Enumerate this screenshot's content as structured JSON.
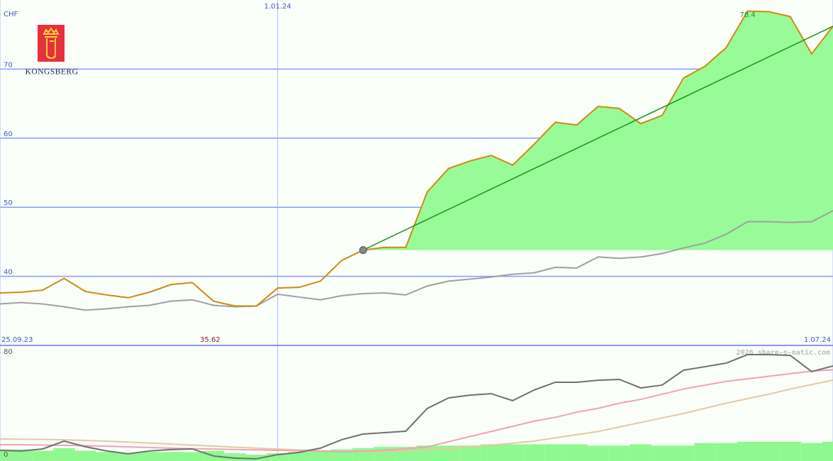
{
  "chart_data": [
    {
      "type": "line",
      "ylabel": "CHF",
      "x": [
        0,
        1,
        2,
        3,
        4,
        5,
        6,
        7,
        8,
        9,
        10,
        11,
        12,
        13,
        14,
        15,
        16,
        17,
        18,
        19,
        20,
        21,
        22,
        23,
        24,
        25,
        26,
        27,
        28,
        29,
        30,
        31,
        32,
        33,
        34,
        35,
        36,
        37,
        38,
        39
      ],
      "xlim": [
        0,
        39
      ],
      "ylim": [
        30,
        80
      ],
      "yticks": [
        40,
        50,
        60,
        70
      ],
      "grid": true,
      "xticks": [
        {
          "value": 0,
          "label": "25.09.23"
        },
        {
          "value": 13,
          "label": "1.01.24"
        },
        {
          "value": 39,
          "label": "1.07.24"
        }
      ],
      "annotations": {
        "high": "78.4",
        "low": "35.62"
      },
      "series": [
        {
          "color": "#a0a0a0",
          "values": [
            36.0,
            36.2,
            36.0,
            35.6,
            35.1,
            35.3,
            35.6,
            35.8,
            36.4,
            36.6,
            35.8,
            35.6,
            35.7,
            37.4,
            37.0,
            36.6,
            37.2,
            37.5,
            37.6,
            37.3,
            38.6,
            39.3,
            39.6,
            39.9,
            40.3,
            40.5,
            41.3,
            41.2,
            42.8,
            42.6,
            42.8,
            43.3,
            44.1,
            44.8,
            46.1,
            47.9,
            47.9,
            47.8,
            47.9,
            49.5
          ]
        },
        {
          "color": "#d08a10",
          "fill_color": "#98fb98",
          "values": [
            37.6,
            37.7,
            38.0,
            39.7,
            37.8,
            37.3,
            36.9,
            37.7,
            38.8,
            39.1,
            36.4,
            35.7,
            35.7,
            38.3,
            38.4,
            39.3,
            42.3,
            43.8,
            44.2,
            44.2,
            52.2,
            55.6,
            56.7,
            57.5,
            56.1,
            59.1,
            62.3,
            61.9,
            64.6,
            64.3,
            62.1,
            63.3,
            68.7,
            70.4,
            73.1,
            78.4,
            78.3,
            77.6,
            72.2,
            76.2
          ]
        },
        {
          "color": "#229922",
          "trend": true,
          "x": [
            17,
            39
          ],
          "values": [
            43.8,
            76.2
          ]
        }
      ]
    },
    {
      "type": "line",
      "xlim": [
        0,
        39
      ],
      "ylim": [
        -5,
        85
      ],
      "yticks": [
        0,
        80
      ],
      "bars": {
        "color": "#90f890",
        "values": [
          4,
          4,
          3,
          5,
          3,
          2,
          1,
          2,
          2,
          2,
          3,
          1,
          0,
          1,
          2,
          3,
          4,
          5,
          6,
          6,
          7,
          7,
          7,
          8,
          8,
          8,
          8,
          8,
          7,
          7,
          8,
          7,
          7,
          9,
          9,
          10,
          10,
          10,
          9,
          10
        ]
      },
      "series": [
        {
          "color": "#e8c8a0",
          "values": [
            12.1,
            12.0,
            11.8,
            11.5,
            11.0,
            10.4,
            9.8,
            9.0,
            8.2,
            7.4,
            6.6,
            5.8,
            5.0,
            4.3,
            3.6,
            3.0,
            2.5,
            2.3,
            2.5,
            3.0,
            3.8,
            4.8,
            6.0,
            7.3,
            8.8,
            10.5,
            13,
            15.5,
            18,
            21.5,
            25,
            28.5,
            32,
            36,
            40,
            43.5,
            47,
            51,
            54.5,
            58
          ]
        },
        {
          "color": "#f4a0b8",
          "values": [
            7.7,
            7.6,
            7.4,
            7.2,
            6.9,
            6.5,
            6.0,
            5.5,
            5.0,
            4.6,
            4.3,
            4.0,
            3.6,
            3.3,
            3.0,
            2.7,
            2.4,
            2.6,
            3.3,
            4.5,
            6.0,
            10,
            14,
            18,
            22,
            26,
            29,
            33,
            36,
            40,
            43,
            47,
            51,
            54,
            57,
            59,
            61,
            63,
            65,
            66
          ]
        },
        {
          "color": "#707070",
          "values": [
            3.3,
            2.8,
            4.4,
            10.5,
            6.1,
            2.8,
            0.6,
            2.8,
            3.9,
            4.4,
            -1.1,
            -2.8,
            -3.3,
            0,
            1.7,
            5.0,
            11.6,
            16.0,
            17.1,
            18.2,
            35.9,
            44.1,
            46.3,
            47.4,
            42.0,
            50.2,
            56.3,
            56.3,
            57.9,
            58.5,
            51.9,
            54.1,
            65.7,
            68.4,
            71.2,
            77.8,
            77.8,
            77.2,
            64.6,
            69.0
          ]
        }
      ]
    }
  ],
  "logo": {
    "name": "KONGSBERG"
  },
  "copyright": "2026 share-o-matic.com"
}
